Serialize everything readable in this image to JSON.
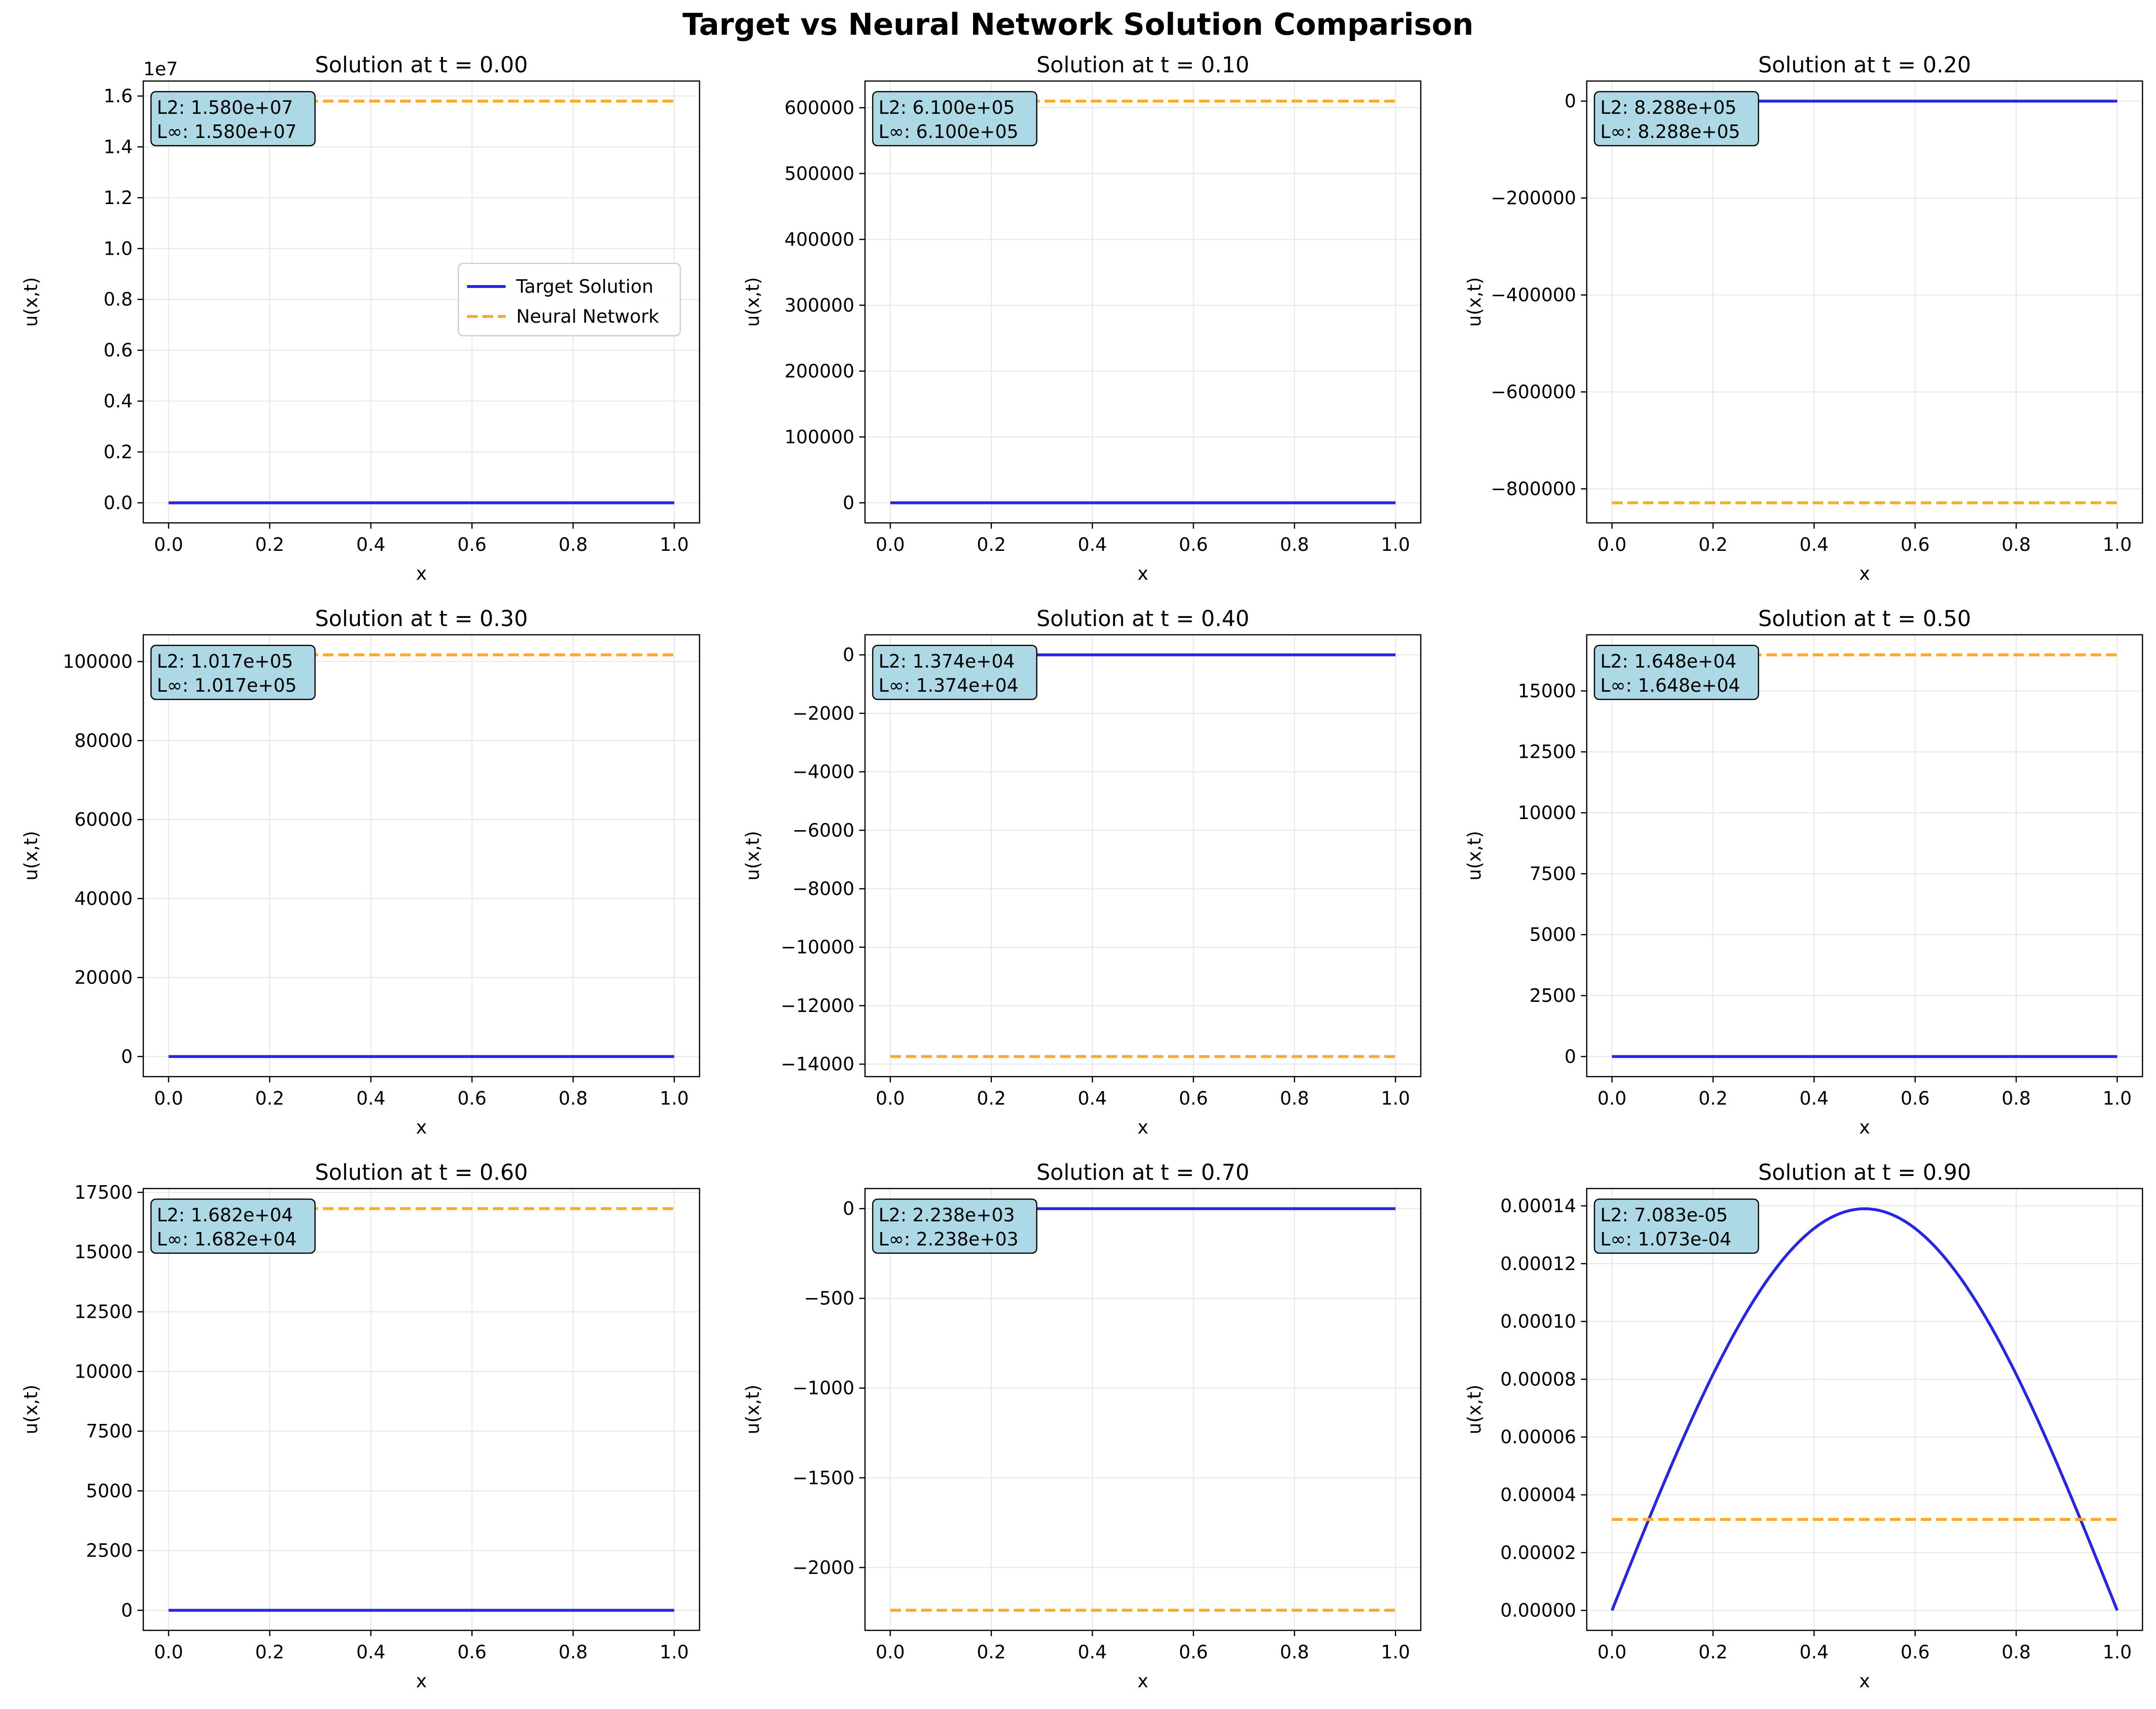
{
  "title": "Target vs Neural Network Solution Comparison",
  "colors": {
    "target": "#2626e6",
    "nn": "#ffa826",
    "box_fill": "#add8e6",
    "grid": "#e6e6e6"
  },
  "legend": {
    "entries": [
      "Target Solution",
      "Neural Network"
    ],
    "placement": "center-right",
    "panel": 0
  },
  "chart_data": [
    {
      "type": "line",
      "title": "Solution at t = 0.00",
      "xlabel": "x",
      "ylabel": "u(x,t)",
      "xlim": [
        -0.05,
        1.05
      ],
      "xticks": [
        "0.0",
        "0.2",
        "0.4",
        "0.6",
        "0.8",
        "1.0"
      ],
      "ylim": [
        -790000,
        16590000
      ],
      "yticks": [
        {
          "v": 0,
          "label": "0.0"
        },
        {
          "v": 2000000,
          "label": "0.2"
        },
        {
          "v": 4000000,
          "label": "0.4"
        },
        {
          "v": 6000000,
          "label": "0.6"
        },
        {
          "v": 8000000,
          "label": "0.8"
        },
        {
          "v": 10000000,
          "label": "1.0"
        },
        {
          "v": 12000000,
          "label": "1.2"
        },
        {
          "v": 14000000,
          "label": "1.4"
        },
        {
          "v": 16000000,
          "label": "1.6"
        }
      ],
      "offset_label": "1e7",
      "series": [
        {
          "name": "Target Solution",
          "kind": "zero",
          "value": 0
        },
        {
          "name": "Neural Network",
          "kind": "constant",
          "value": 15800000
        }
      ],
      "annotation": [
        "L2: 1.580e+07",
        "L∞: 1.580e+07"
      ]
    },
    {
      "type": "line",
      "title": "Solution at t = 0.10",
      "xlabel": "x",
      "ylabel": "u(x,t)",
      "xlim": [
        -0.05,
        1.05
      ],
      "xticks": [
        "0.0",
        "0.2",
        "0.4",
        "0.6",
        "0.8",
        "1.0"
      ],
      "ylim": [
        -30500,
        640500
      ],
      "yticks": [
        {
          "v": 0,
          "label": "0"
        },
        {
          "v": 100000,
          "label": "100000"
        },
        {
          "v": 200000,
          "label": "200000"
        },
        {
          "v": 300000,
          "label": "300000"
        },
        {
          "v": 400000,
          "label": "400000"
        },
        {
          "v": 500000,
          "label": "500000"
        },
        {
          "v": 600000,
          "label": "600000"
        }
      ],
      "series": [
        {
          "name": "Target Solution",
          "kind": "zero",
          "value": 0
        },
        {
          "name": "Neural Network",
          "kind": "constant",
          "value": 610000
        }
      ],
      "annotation": [
        "L2: 6.100e+05",
        "L∞: 6.100e+05"
      ]
    },
    {
      "type": "line",
      "title": "Solution at t = 0.20",
      "xlabel": "x",
      "ylabel": "u(x,t)",
      "xlim": [
        -0.05,
        1.05
      ],
      "xticks": [
        "0.0",
        "0.2",
        "0.4",
        "0.6",
        "0.8",
        "1.0"
      ],
      "ylim": [
        -870240,
        41440
      ],
      "yticks": [
        {
          "v": 0,
          "label": "0"
        },
        {
          "v": -200000,
          "label": "−200000"
        },
        {
          "v": -400000,
          "label": "−400000"
        },
        {
          "v": -600000,
          "label": "−600000"
        },
        {
          "v": -800000,
          "label": "−800000"
        }
      ],
      "series": [
        {
          "name": "Target Solution",
          "kind": "zero",
          "value": 0
        },
        {
          "name": "Neural Network",
          "kind": "constant",
          "value": -828800
        }
      ],
      "annotation": [
        "L2: 8.288e+05",
        "L∞: 8.288e+05"
      ]
    },
    {
      "type": "line",
      "title": "Solution at t = 0.30",
      "xlabel": "x",
      "ylabel": "u(x,t)",
      "xlim": [
        -0.05,
        1.05
      ],
      "xticks": [
        "0.0",
        "0.2",
        "0.4",
        "0.6",
        "0.8",
        "1.0"
      ],
      "ylim": [
        -5085,
        106785
      ],
      "yticks": [
        {
          "v": 0,
          "label": "0"
        },
        {
          "v": 20000,
          "label": "20000"
        },
        {
          "v": 40000,
          "label": "40000"
        },
        {
          "v": 60000,
          "label": "60000"
        },
        {
          "v": 80000,
          "label": "80000"
        },
        {
          "v": 100000,
          "label": "100000"
        }
      ],
      "series": [
        {
          "name": "Target Solution",
          "kind": "zero",
          "value": 0
        },
        {
          "name": "Neural Network",
          "kind": "constant",
          "value": 101700
        }
      ],
      "annotation": [
        "L2: 1.017e+05",
        "L∞: 1.017e+05"
      ]
    },
    {
      "type": "line",
      "title": "Solution at t = 0.40",
      "xlabel": "x",
      "ylabel": "u(x,t)",
      "xlim": [
        -0.05,
        1.05
      ],
      "xticks": [
        "0.0",
        "0.2",
        "0.4",
        "0.6",
        "0.8",
        "1.0"
      ],
      "ylim": [
        -14427,
        687
      ],
      "yticks": [
        {
          "v": 0,
          "label": "0"
        },
        {
          "v": -2000,
          "label": "−2000"
        },
        {
          "v": -4000,
          "label": "−4000"
        },
        {
          "v": -6000,
          "label": "−6000"
        },
        {
          "v": -8000,
          "label": "−8000"
        },
        {
          "v": -10000,
          "label": "−10000"
        },
        {
          "v": -12000,
          "label": "−12000"
        },
        {
          "v": -14000,
          "label": "−14000"
        }
      ],
      "series": [
        {
          "name": "Target Solution",
          "kind": "zero",
          "value": 0
        },
        {
          "name": "Neural Network",
          "kind": "constant",
          "value": -13740
        }
      ],
      "annotation": [
        "L2: 1.374e+04",
        "L∞: 1.374e+04"
      ]
    },
    {
      "type": "line",
      "title": "Solution at t = 0.50",
      "xlabel": "x",
      "ylabel": "u(x,t)",
      "xlim": [
        -0.05,
        1.05
      ],
      "xticks": [
        "0.0",
        "0.2",
        "0.4",
        "0.6",
        "0.8",
        "1.0"
      ],
      "ylim": [
        -824,
        17304
      ],
      "yticks": [
        {
          "v": 0,
          "label": "0"
        },
        {
          "v": 2500,
          "label": "2500"
        },
        {
          "v": 5000,
          "label": "5000"
        },
        {
          "v": 7500,
          "label": "7500"
        },
        {
          "v": 10000,
          "label": "10000"
        },
        {
          "v": 12500,
          "label": "12500"
        },
        {
          "v": 15000,
          "label": "15000"
        }
      ],
      "series": [
        {
          "name": "Target Solution",
          "kind": "zero",
          "value": 0
        },
        {
          "name": "Neural Network",
          "kind": "constant",
          "value": 16480
        }
      ],
      "annotation": [
        "L2: 1.648e+04",
        "L∞: 1.648e+04"
      ]
    },
    {
      "type": "line",
      "title": "Solution at t = 0.60",
      "xlabel": "x",
      "ylabel": "u(x,t)",
      "xlim": [
        -0.05,
        1.05
      ],
      "xticks": [
        "0.0",
        "0.2",
        "0.4",
        "0.6",
        "0.8",
        "1.0"
      ],
      "ylim": [
        -841,
        17661
      ],
      "yticks": [
        {
          "v": 0,
          "label": "0"
        },
        {
          "v": 2500,
          "label": "2500"
        },
        {
          "v": 5000,
          "label": "5000"
        },
        {
          "v": 7500,
          "label": "7500"
        },
        {
          "v": 10000,
          "label": "10000"
        },
        {
          "v": 12500,
          "label": "12500"
        },
        {
          "v": 15000,
          "label": "15000"
        },
        {
          "v": 17500,
          "label": "17500"
        }
      ],
      "series": [
        {
          "name": "Target Solution",
          "kind": "zero",
          "value": 0
        },
        {
          "name": "Neural Network",
          "kind": "constant",
          "value": 16820
        }
      ],
      "annotation": [
        "L2: 1.682e+04",
        "L∞: 1.682e+04"
      ]
    },
    {
      "type": "line",
      "title": "Solution at t = 0.70",
      "xlabel": "x",
      "ylabel": "u(x,t)",
      "xlim": [
        -0.05,
        1.05
      ],
      "xticks": [
        "0.0",
        "0.2",
        "0.4",
        "0.6",
        "0.8",
        "1.0"
      ],
      "ylim": [
        -2350,
        112
      ],
      "yticks": [
        {
          "v": 0,
          "label": "0"
        },
        {
          "v": -500,
          "label": "−500"
        },
        {
          "v": -1000,
          "label": "−1000"
        },
        {
          "v": -1500,
          "label": "−1500"
        },
        {
          "v": -2000,
          "label": "−2000"
        }
      ],
      "series": [
        {
          "name": "Target Solution",
          "kind": "zero",
          "value": 0
        },
        {
          "name": "Neural Network",
          "kind": "constant",
          "value": -2238
        }
      ],
      "annotation": [
        "L2: 2.238e+03",
        "L∞: 2.238e+03"
      ]
    },
    {
      "type": "line",
      "title": "Solution at t = 0.90",
      "xlabel": "x",
      "ylabel": "u(x,t)",
      "xlim": [
        -0.05,
        1.05
      ],
      "xticks": [
        "0.0",
        "0.2",
        "0.4",
        "0.6",
        "0.8",
        "1.0"
      ],
      "ylim": [
        -6.9e-06,
        0.000146
      ],
      "yticks": [
        {
          "v": 0,
          "label": "0.00000"
        },
        {
          "v": 2e-05,
          "label": "0.00002"
        },
        {
          "v": 4e-05,
          "label": "0.00004"
        },
        {
          "v": 6e-05,
          "label": "0.00006"
        },
        {
          "v": 8e-05,
          "label": "0.00008"
        },
        {
          "v": 0.0001,
          "label": "0.00010"
        },
        {
          "v": 0.00012,
          "label": "0.00012"
        },
        {
          "v": 0.00014,
          "label": "0.00014"
        }
      ],
      "series": [
        {
          "name": "Target Solution",
          "kind": "sine",
          "amplitude": 0.000139
        },
        {
          "name": "Neural Network",
          "kind": "constant",
          "value": 3.15e-05
        }
      ],
      "annotation": [
        "L2: 7.083e-05",
        "L∞: 1.073e-04"
      ]
    }
  ]
}
